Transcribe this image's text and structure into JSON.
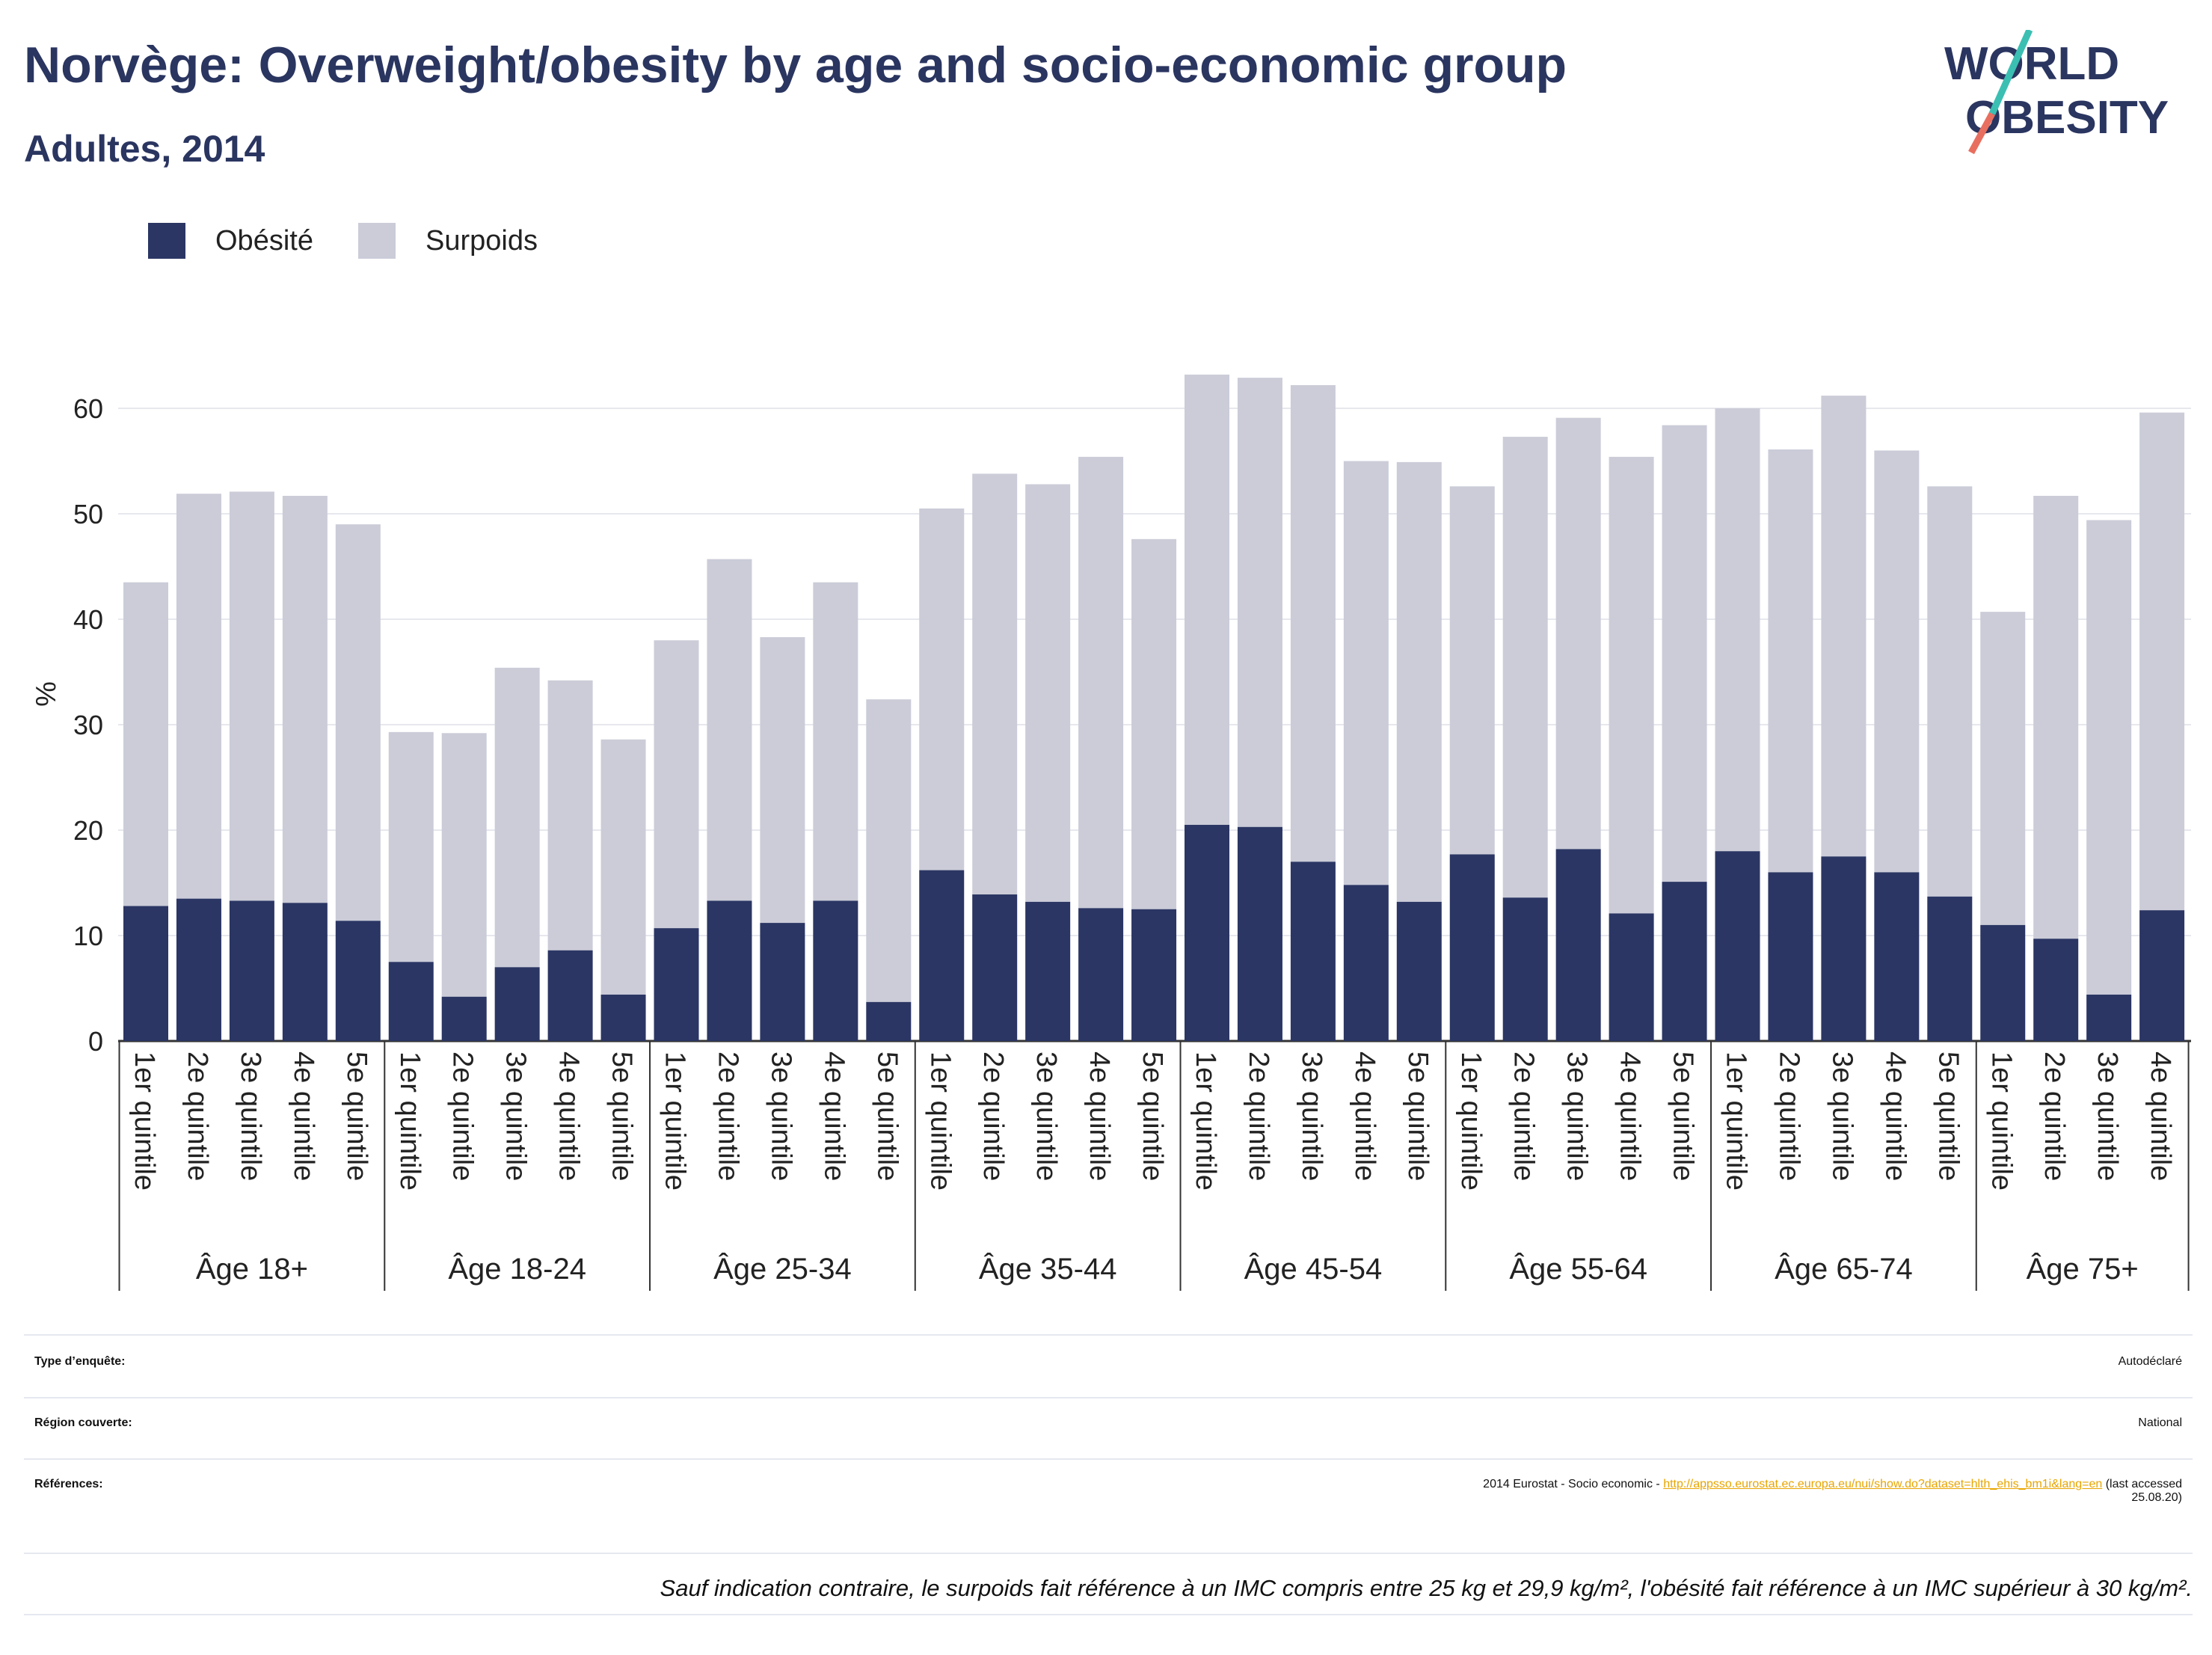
{
  "header": {
    "title": "Norvège: Overweight/obesity by age and socio-economic group",
    "subtitle": "Adultes, 2014"
  },
  "logo": {
    "line1": "WORLD",
    "line2": "OBESITY"
  },
  "colors": {
    "obesity": "#2b3664",
    "overweight": "#cbccd8",
    "title": "#2a3560",
    "link": "#e8a500"
  },
  "chart_data": {
    "type": "bar",
    "stacked": true,
    "ylabel": "%",
    "ylim": [
      0,
      65
    ],
    "yticks": [
      0,
      10,
      20,
      30,
      40,
      50,
      60
    ],
    "grid": true,
    "legend_position": "top-left",
    "series": [
      {
        "name": "Obésité",
        "color": "#2b3664"
      },
      {
        "name": "Surpoids",
        "color": "#cbccd8"
      }
    ],
    "groups": [
      {
        "label": "Âge 18+",
        "bars": [
          {
            "label": "1er quintile",
            "obesity": 12.8,
            "total": 43.5
          },
          {
            "label": "2e quintile",
            "obesity": 13.5,
            "total": 51.9
          },
          {
            "label": "3e quintile",
            "obesity": 13.3,
            "total": 52.1
          },
          {
            "label": "4e quintile",
            "obesity": 13.1,
            "total": 51.7
          },
          {
            "label": "5e quintile",
            "obesity": 11.4,
            "total": 49.0
          }
        ]
      },
      {
        "label": "Âge 18-24",
        "bars": [
          {
            "label": "1er quintile",
            "obesity": 7.5,
            "total": 29.3
          },
          {
            "label": "2e quintile",
            "obesity": 4.2,
            "total": 29.2
          },
          {
            "label": "3e quintile",
            "obesity": 7.0,
            "total": 35.4
          },
          {
            "label": "4e quintile",
            "obesity": 8.6,
            "total": 34.2
          },
          {
            "label": "5e quintile",
            "obesity": 4.4,
            "total": 28.6
          }
        ]
      },
      {
        "label": "Âge 25-34",
        "bars": [
          {
            "label": "1er quintile",
            "obesity": 10.7,
            "total": 38.0
          },
          {
            "label": "2e quintile",
            "obesity": 13.3,
            "total": 45.7
          },
          {
            "label": "3e quintile",
            "obesity": 11.2,
            "total": 38.3
          },
          {
            "label": "4e quintile",
            "obesity": 13.3,
            "total": 43.5
          },
          {
            "label": "5e quintile",
            "obesity": 3.7,
            "total": 32.4
          }
        ]
      },
      {
        "label": "Âge 35-44",
        "bars": [
          {
            "label": "1er quintile",
            "obesity": 16.2,
            "total": 50.5
          },
          {
            "label": "2e quintile",
            "obesity": 13.9,
            "total": 53.8
          },
          {
            "label": "3e quintile",
            "obesity": 13.2,
            "total": 52.8
          },
          {
            "label": "4e quintile",
            "obesity": 12.6,
            "total": 55.4
          },
          {
            "label": "5e quintile",
            "obesity": 12.5,
            "total": 47.6
          }
        ]
      },
      {
        "label": "Âge 45-54",
        "bars": [
          {
            "label": "1er quintile",
            "obesity": 20.5,
            "total": 63.2
          },
          {
            "label": "2e quintile",
            "obesity": 20.3,
            "total": 62.9
          },
          {
            "label": "3e quintile",
            "obesity": 17.0,
            "total": 62.2
          },
          {
            "label": "4e quintile",
            "obesity": 14.8,
            "total": 55.0
          },
          {
            "label": "5e quintile",
            "obesity": 13.2,
            "total": 54.9
          }
        ]
      },
      {
        "label": "Âge 55-64",
        "bars": [
          {
            "label": "1er quintile",
            "obesity": 17.7,
            "total": 52.6
          },
          {
            "label": "2e quintile",
            "obesity": 13.6,
            "total": 57.3
          },
          {
            "label": "3e quintile",
            "obesity": 18.2,
            "total": 59.1
          },
          {
            "label": "4e quintile",
            "obesity": 12.1,
            "total": 55.4
          },
          {
            "label": "5e quintile",
            "obesity": 15.1,
            "total": 58.4
          }
        ]
      },
      {
        "label": "Âge 65-74",
        "bars": [
          {
            "label": "1er quintile",
            "obesity": 18.0,
            "total": 60.0
          },
          {
            "label": "2e quintile",
            "obesity": 16.0,
            "total": 56.1
          },
          {
            "label": "3e quintile",
            "obesity": 17.5,
            "total": 61.2
          },
          {
            "label": "4e quintile",
            "obesity": 16.0,
            "total": 56.0
          },
          {
            "label": "5e quintile",
            "obesity": 13.7,
            "total": 52.6
          }
        ]
      },
      {
        "label": "Âge 75+",
        "bars": [
          {
            "label": "1er quintile",
            "obesity": 11.0,
            "total": 40.7
          },
          {
            "label": "2e quintile",
            "obesity": 9.7,
            "total": 51.7
          },
          {
            "label": "3e quintile",
            "obesity": 4.4,
            "total": 49.4
          },
          {
            "label": "4e quintile",
            "obesity": 12.4,
            "total": 59.6
          }
        ]
      }
    ]
  },
  "info": {
    "survey_label": "Type d’enquête:",
    "survey_value": "Autodéclaré",
    "region_label": "Région couverte:",
    "region_value": "National",
    "refs_label": "Références:",
    "refs_prefix": "2014 Eurostat - Socio economic - ",
    "refs_link": "http://appsso.eurostat.ec.europa.eu/nui/show.do?dataset=hlth_ehis_bm1i&lang=en",
    "refs_suffix": " (last accessed",
    "refs_date": "25.08.20)",
    "note": "Sauf indication contraire, le surpoids fait référence à un IMC compris entre 25 kg et 29,9 kg/m², l'obésité fait référence à un IMC supérieur à 30 kg/m²."
  }
}
